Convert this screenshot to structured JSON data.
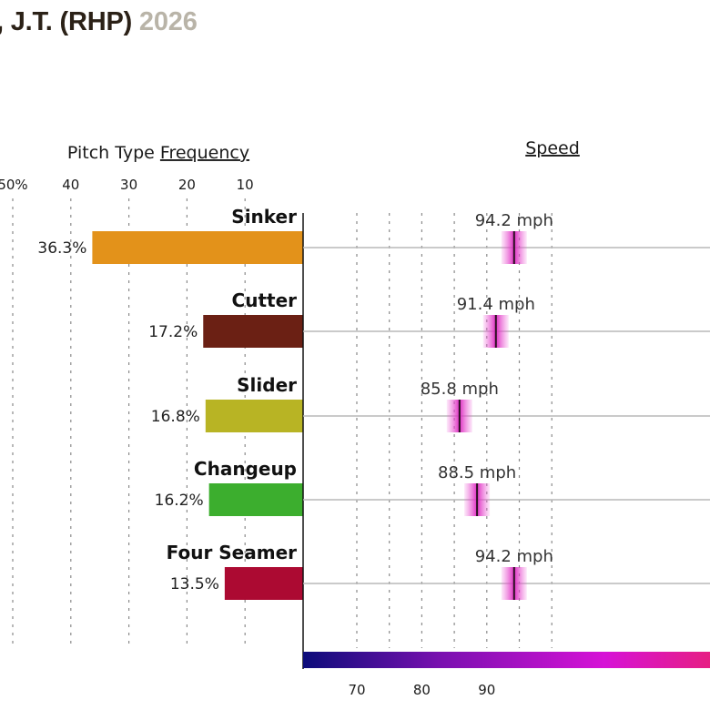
{
  "header": {
    "player": ", J.T. (RHP)",
    "year": "2026"
  },
  "chart_data": {
    "type": "bar",
    "frequency_panel": {
      "title_prefix": "Pitch Type ",
      "title_link": "Frequency",
      "tick_labels": [
        "50%",
        "40",
        "30",
        "20",
        "10"
      ],
      "tick_values": [
        50,
        40,
        30,
        20,
        10
      ],
      "xlim": [
        0,
        50
      ]
    },
    "speed_panel": {
      "title": "Speed",
      "tick_labels": [
        "70",
        "80",
        "90"
      ],
      "tick_values": [
        70,
        80,
        90
      ],
      "gradient_colors": [
        "#0c0c7a",
        "#7a10b0",
        "#d612d6",
        "#e8207a"
      ]
    },
    "pitches": [
      {
        "name": "Sinker",
        "frequency": 36.3,
        "frequency_label": "36.3%",
        "speed": 94.2,
        "speed_label": "94.2 mph",
        "color": "#e3921a"
      },
      {
        "name": "Cutter",
        "frequency": 17.2,
        "frequency_label": "17.2%",
        "speed": 91.4,
        "speed_label": "91.4 mph",
        "color": "#6b2014"
      },
      {
        "name": "Slider",
        "frequency": 16.8,
        "frequency_label": "16.8%",
        "speed": 85.8,
        "speed_label": "85.8 mph",
        "color": "#b8b424"
      },
      {
        "name": "Changeup",
        "frequency": 16.2,
        "frequency_label": "16.2%",
        "speed": 88.5,
        "speed_label": "88.5 mph",
        "color": "#3cae2e"
      },
      {
        "name": "Four Seamer",
        "frequency": 13.5,
        "frequency_label": "13.5%",
        "speed": 94.2,
        "speed_label": "94.2 mph",
        "color": "#ac0a32"
      }
    ]
  }
}
